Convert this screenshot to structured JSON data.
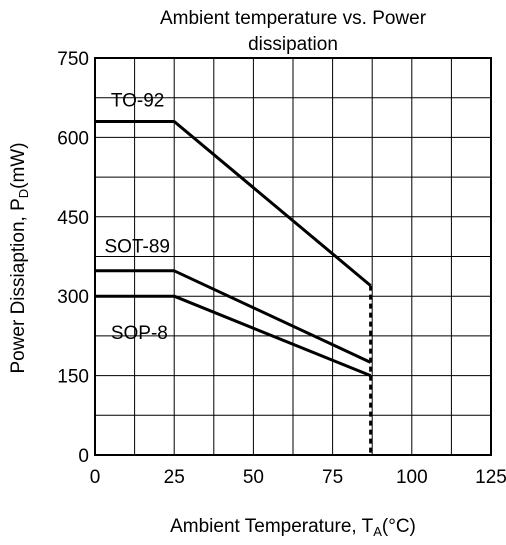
{
  "chart_data": {
    "type": "line",
    "title_line1": "Ambient temperature vs. Power",
    "title_line2": "dissipation",
    "ylabel_main": "Power Dissiaption, P",
    "ylabel_sub": "D",
    "ylabel_unit": "(mW)",
    "xlabel_main": "Ambient Temperature, T",
    "xlabel_sub": "A",
    "xlabel_unit": "(°C)",
    "xlim": [
      0,
      125
    ],
    "ylim": [
      0,
      750
    ],
    "xticks": [
      "0",
      "25",
      "50",
      "75",
      "100",
      "125"
    ],
    "yticks": [
      "0",
      "150",
      "300",
      "450",
      "600",
      "750"
    ],
    "grid": true,
    "series": [
      {
        "name": "TO-92",
        "points": [
          [
            0,
            630
          ],
          [
            25,
            630
          ],
          [
            87,
            320
          ]
        ]
      },
      {
        "name": "SOT-89",
        "points": [
          [
            0,
            348
          ],
          [
            25,
            348
          ],
          [
            87,
            175
          ]
        ]
      },
      {
        "name": "SOP-8",
        "points": [
          [
            0,
            300
          ],
          [
            25,
            300
          ],
          [
            87,
            150
          ]
        ]
      }
    ],
    "cutoff": {
      "x": 87,
      "y_top": 320,
      "style": "dashed"
    }
  }
}
